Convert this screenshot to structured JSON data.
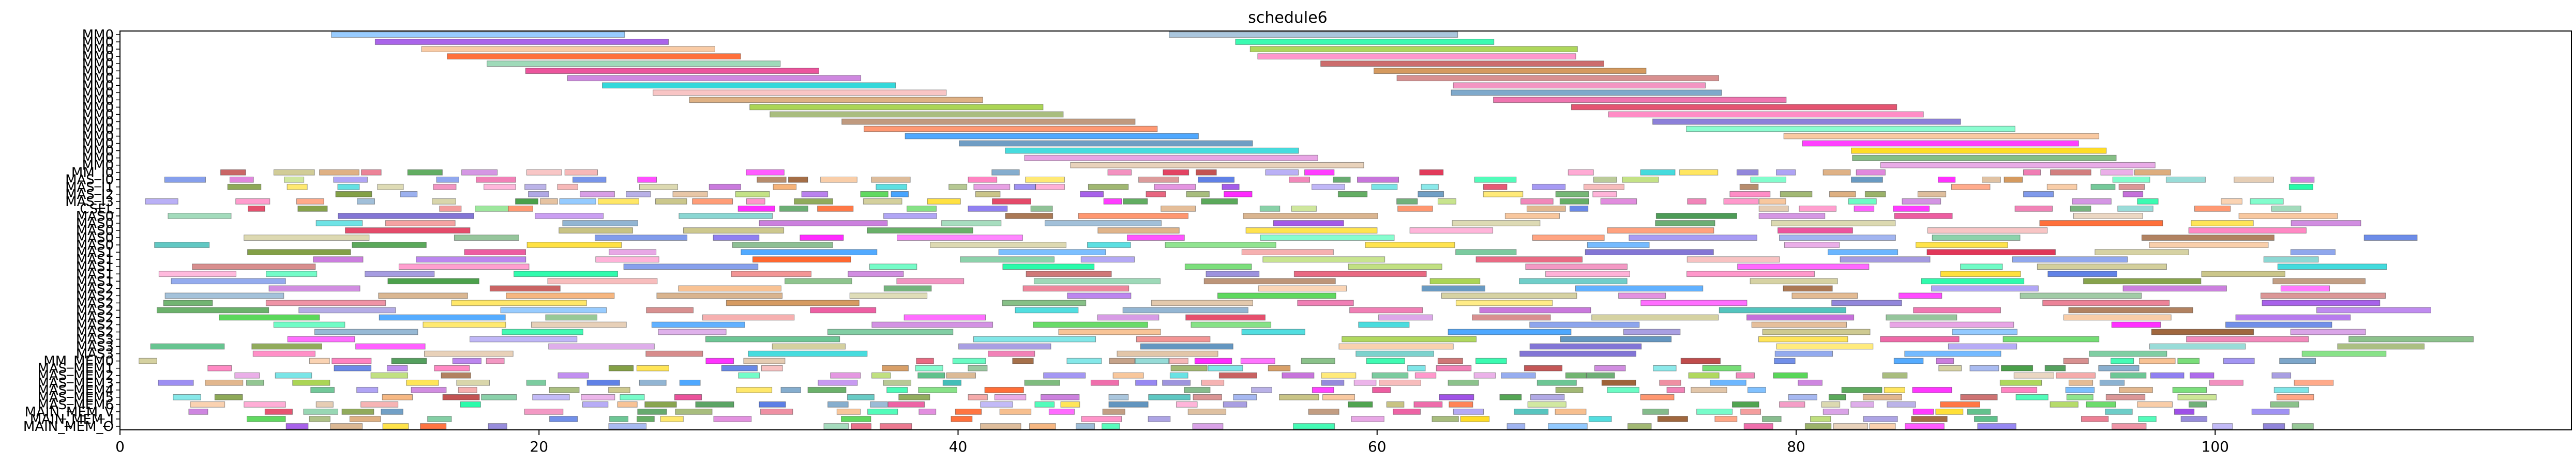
{
  "chart_data": {
    "type": "gantt",
    "title": "schedule6",
    "xlabel": "",
    "ylabel": "",
    "xlim": [
      0,
      117
    ],
    "x_ticks": [
      0,
      20,
      40,
      60,
      80,
      100
    ],
    "grid": false,
    "legend": "none",
    "rows": [
      "MM0",
      "MM0",
      "MM0",
      "MM0",
      "MM0",
      "MM0",
      "MM0",
      "MM0",
      "MM0",
      "MM0",
      "MM0",
      "MM0",
      "MM0",
      "MM0",
      "MM0",
      "MM0",
      "MM0",
      "MM0",
      "MM0",
      "MM_I0",
      "MAS_I0",
      "MAS_I1",
      "MAS_I2",
      "MAS_I3",
      "CSEL",
      "MAS0",
      "MAS0",
      "MAS0",
      "MAS0",
      "MAS0",
      "MAS1",
      "MAS1",
      "MAS1",
      "MAS1",
      "MAS1",
      "MAS2",
      "MAS2",
      "MAS2",
      "MAS2",
      "MAS2",
      "MAS2",
      "MAS2",
      "MAS3",
      "MAS3",
      "MAS3",
      "MM_MEM0",
      "MAS_MEM1",
      "MAS_MEM2",
      "MAS_MEM3",
      "MAS_MEM4",
      "MAS_MEM5",
      "MAS_MEM6",
      "MAIN_MEM_V",
      "MAIN_MEM_I",
      "MAIN_MEM_O"
    ],
    "colors": [
      "#e8348a",
      "#2e8b3a",
      "#b22222",
      "#6b8e23",
      "#d2a679",
      "#4169e1",
      "#f4a460",
      "#cd853f",
      "#6a5acd",
      "#1e90ff",
      "#228b22",
      "#ff4500",
      "#8a2be2",
      "#20b2aa",
      "#da70d6",
      "#bdb76b",
      "#4682b4",
      "#ff69b4",
      "#3cb371",
      "#dc143c",
      "#9acd32",
      "#ba55d3",
      "#00ced1",
      "#ffd700",
      "#ff00ff",
      "#32cd32",
      "#8b4513",
      "#7b68ee",
      "#00fa9a",
      "#f08080"
    ],
    "seed": 6
  }
}
